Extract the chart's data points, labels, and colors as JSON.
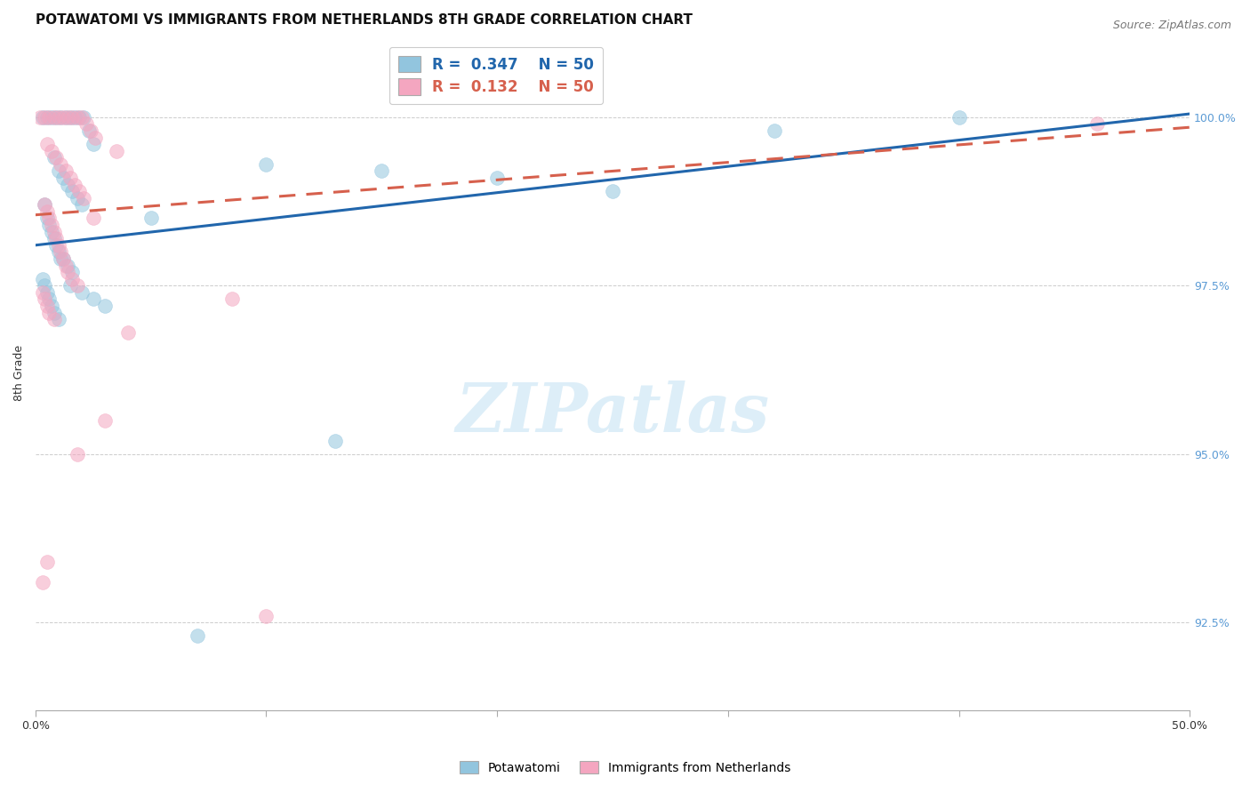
{
  "title": "POTAWATOMI VS IMMIGRANTS FROM NETHERLANDS 8TH GRADE CORRELATION CHART",
  "source": "Source: ZipAtlas.com",
  "ylabel": "8th Grade",
  "xlim": [
    0.0,
    50.0
  ],
  "ylim": [
    91.2,
    101.2
  ],
  "yticks": [
    92.5,
    95.0,
    97.5,
    100.0
  ],
  "xticks": [
    0.0,
    10.0,
    20.0,
    30.0,
    40.0,
    50.0
  ],
  "xtick_labels": [
    "0.0%",
    "",
    "",
    "",
    "",
    "50.0%"
  ],
  "legend_blue_R": "0.347",
  "legend_blue_N": "50",
  "legend_pink_R": "0.132",
  "legend_pink_N": "50",
  "blue_color": "#92c5de",
  "pink_color": "#f4a6c0",
  "blue_line_color": "#2166ac",
  "pink_line_color": "#d6604d",
  "blue_line_y0": 98.1,
  "blue_line_y50": 100.05,
  "pink_line_y0": 98.55,
  "pink_line_y50": 99.85,
  "blue_scatter": [
    [
      0.3,
      100.0
    ],
    [
      0.5,
      100.0
    ],
    [
      0.7,
      100.0
    ],
    [
      0.9,
      100.0
    ],
    [
      1.1,
      100.0
    ],
    [
      1.3,
      100.0
    ],
    [
      1.5,
      100.0
    ],
    [
      1.7,
      100.0
    ],
    [
      1.9,
      100.0
    ],
    [
      2.1,
      100.0
    ],
    [
      2.3,
      99.8
    ],
    [
      2.5,
      99.6
    ],
    [
      0.8,
      99.4
    ],
    [
      1.0,
      99.2
    ],
    [
      1.2,
      99.1
    ],
    [
      1.4,
      99.0
    ],
    [
      1.6,
      98.9
    ],
    [
      1.8,
      98.8
    ],
    [
      2.0,
      98.7
    ],
    [
      0.4,
      98.7
    ],
    [
      0.5,
      98.5
    ],
    [
      0.6,
      98.4
    ],
    [
      0.7,
      98.3
    ],
    [
      0.8,
      98.2
    ],
    [
      0.9,
      98.1
    ],
    [
      1.0,
      98.0
    ],
    [
      1.1,
      97.9
    ],
    [
      1.2,
      97.9
    ],
    [
      1.4,
      97.8
    ],
    [
      1.6,
      97.7
    ],
    [
      0.3,
      97.6
    ],
    [
      0.4,
      97.5
    ],
    [
      0.5,
      97.4
    ],
    [
      0.6,
      97.3
    ],
    [
      0.7,
      97.2
    ],
    [
      0.8,
      97.1
    ],
    [
      1.0,
      97.0
    ],
    [
      1.5,
      97.5
    ],
    [
      2.0,
      97.4
    ],
    [
      2.5,
      97.3
    ],
    [
      3.0,
      97.2
    ],
    [
      5.0,
      98.5
    ],
    [
      10.0,
      99.3
    ],
    [
      15.0,
      99.2
    ],
    [
      20.0,
      99.1
    ],
    [
      25.0,
      98.9
    ],
    [
      32.0,
      99.8
    ],
    [
      40.0,
      100.0
    ],
    [
      13.0,
      95.2
    ],
    [
      7.0,
      92.3
    ]
  ],
  "pink_scatter": [
    [
      0.2,
      100.0
    ],
    [
      0.4,
      100.0
    ],
    [
      0.6,
      100.0
    ],
    [
      0.8,
      100.0
    ],
    [
      1.0,
      100.0
    ],
    [
      1.2,
      100.0
    ],
    [
      1.4,
      100.0
    ],
    [
      1.6,
      100.0
    ],
    [
      1.8,
      100.0
    ],
    [
      2.0,
      100.0
    ],
    [
      2.2,
      99.9
    ],
    [
      2.4,
      99.8
    ],
    [
      2.6,
      99.7
    ],
    [
      0.5,
      99.6
    ],
    [
      0.7,
      99.5
    ],
    [
      0.9,
      99.4
    ],
    [
      1.1,
      99.3
    ],
    [
      1.3,
      99.2
    ],
    [
      1.5,
      99.1
    ],
    [
      1.7,
      99.0
    ],
    [
      1.9,
      98.9
    ],
    [
      2.1,
      98.8
    ],
    [
      0.4,
      98.7
    ],
    [
      0.5,
      98.6
    ],
    [
      0.6,
      98.5
    ],
    [
      0.7,
      98.4
    ],
    [
      0.8,
      98.3
    ],
    [
      0.9,
      98.2
    ],
    [
      1.0,
      98.1
    ],
    [
      1.1,
      98.0
    ],
    [
      1.2,
      97.9
    ],
    [
      1.3,
      97.8
    ],
    [
      1.4,
      97.7
    ],
    [
      1.6,
      97.6
    ],
    [
      1.8,
      97.5
    ],
    [
      0.3,
      97.4
    ],
    [
      0.4,
      97.3
    ],
    [
      0.5,
      97.2
    ],
    [
      0.6,
      97.1
    ],
    [
      0.8,
      97.0
    ],
    [
      2.5,
      98.5
    ],
    [
      4.0,
      96.8
    ],
    [
      8.5,
      97.3
    ],
    [
      3.0,
      95.5
    ],
    [
      0.5,
      93.4
    ],
    [
      10.0,
      92.6
    ],
    [
      0.3,
      93.1
    ],
    [
      1.8,
      95.0
    ],
    [
      3.5,
      99.5
    ],
    [
      46.0,
      99.9
    ]
  ],
  "watermark_text": "ZIPatlas",
  "watermark_color": "#ddeef8",
  "background_color": "#ffffff",
  "grid_color": "#cccccc",
  "title_fontsize": 11,
  "axis_label_fontsize": 9,
  "tick_fontsize": 9,
  "source_fontsize": 9,
  "right_axis_color": "#5b9bd5"
}
